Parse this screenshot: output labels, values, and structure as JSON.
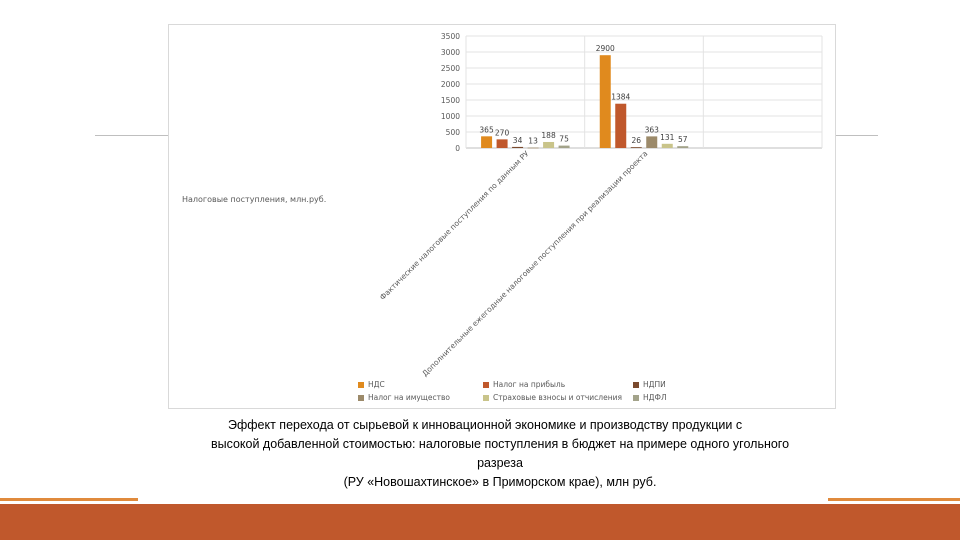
{
  "chart_data": {
    "type": "bar",
    "side_title": "Налоговые поступления, млн.руб.",
    "categories": [
      "Фактические налоговые поступления по данным РУ",
      "Дополнительные ежегодные налоговые поступления при реализации проекта",
      ""
    ],
    "ylim": [
      0,
      3500
    ],
    "yticks": [
      0,
      500,
      1000,
      1500,
      2000,
      2500,
      3000,
      3500
    ],
    "grid": true,
    "legend_position": "bottom",
    "series": [
      {
        "name": "НДС",
        "color": "#e08a1e",
        "values": [
          365,
          2900,
          null
        ]
      },
      {
        "name": "Налог на прибыль",
        "color": "#c0582c",
        "values": [
          270,
          1384,
          null
        ]
      },
      {
        "name": "НДПИ",
        "color": "#7a4a2e",
        "values": [
          34,
          26,
          null
        ]
      },
      {
        "name": "Налог на имущество",
        "color": "#9c8a6a",
        "values": [
          13,
          363,
          null
        ]
      },
      {
        "name": "Страховые взносы и отчисления",
        "color": "#c9c48a",
        "values": [
          188,
          131,
          null
        ]
      },
      {
        "name": "НДФЛ",
        "color": "#a3a38a",
        "values": [
          75,
          57,
          null
        ]
      }
    ]
  },
  "caption": {
    "line1": "Эффект перехода от сырьевой к инновационной экономике и производству продукции с",
    "line2": "высокой добавленной стоимостью: налоговые поступления в бюджет на примере одного угольного",
    "line3": "разреза",
    "line4": "(РУ «Новошахтинское» в Приморском крае), млн руб."
  }
}
